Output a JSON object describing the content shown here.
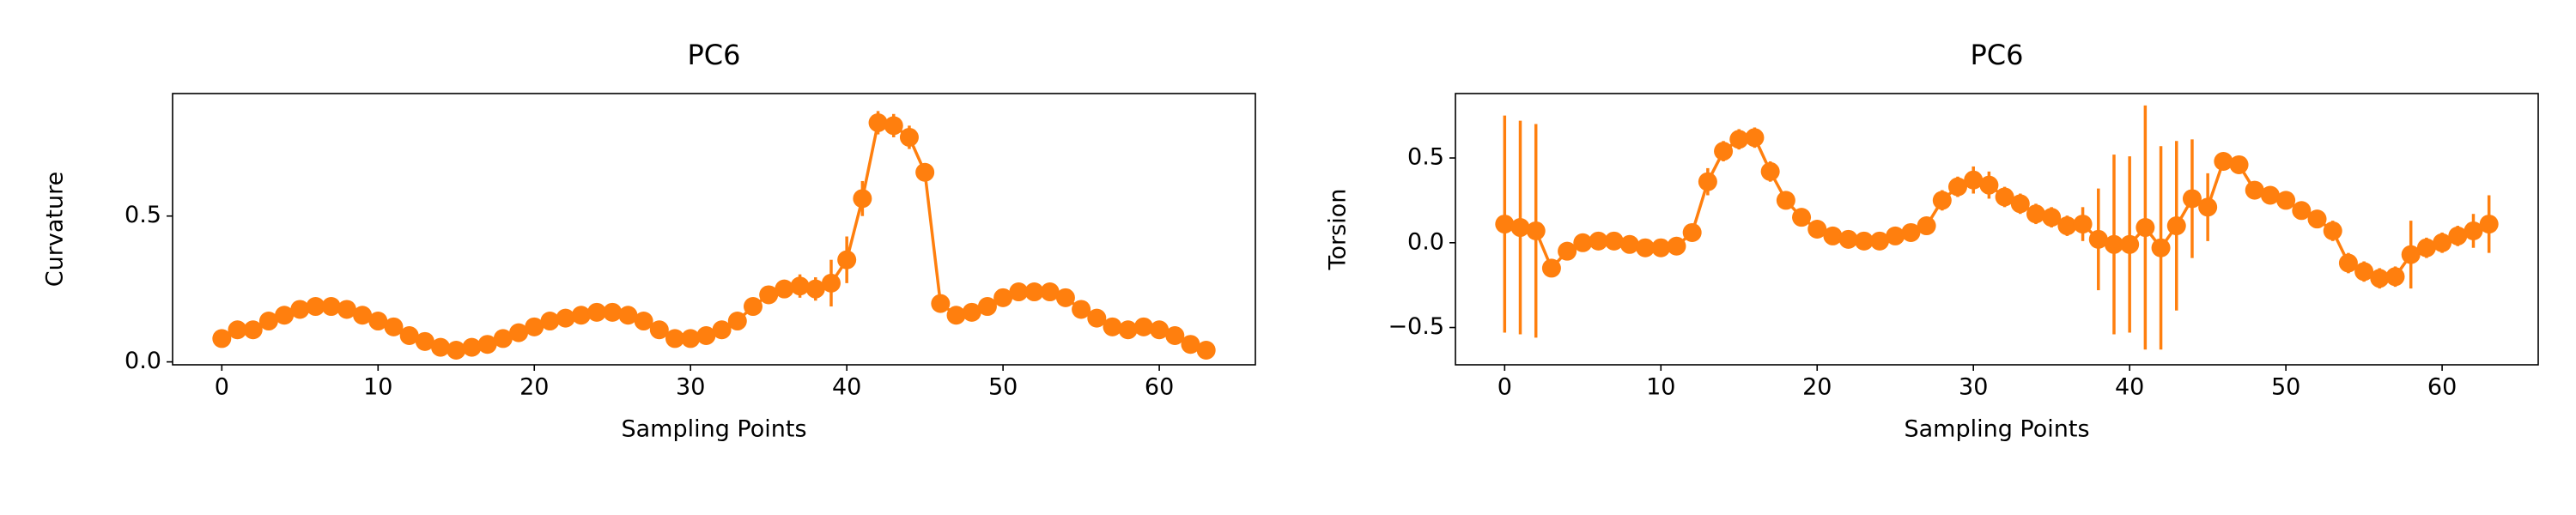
{
  "chart_data": [
    {
      "type": "errorbar",
      "title": "PC6",
      "xlabel": "Sampling Points",
      "ylabel": "Curvature",
      "color": "#ff7f0e",
      "x": [
        0,
        1,
        2,
        3,
        4,
        5,
        6,
        7,
        8,
        9,
        10,
        11,
        12,
        13,
        14,
        15,
        16,
        17,
        18,
        19,
        20,
        21,
        22,
        23,
        24,
        25,
        26,
        27,
        28,
        29,
        30,
        31,
        32,
        33,
        34,
        35,
        36,
        37,
        38,
        39,
        40,
        41,
        42,
        43,
        44,
        45,
        46,
        47,
        48,
        49,
        50,
        51,
        52,
        53,
        54,
        55,
        56,
        57,
        58,
        59,
        60,
        61,
        62,
        63
      ],
      "values": [
        0.08,
        0.11,
        0.11,
        0.14,
        0.16,
        0.18,
        0.19,
        0.19,
        0.18,
        0.16,
        0.14,
        0.12,
        0.09,
        0.07,
        0.05,
        0.04,
        0.05,
        0.06,
        0.08,
        0.1,
        0.12,
        0.14,
        0.15,
        0.16,
        0.17,
        0.17,
        0.16,
        0.14,
        0.11,
        0.08,
        0.08,
        0.09,
        0.11,
        0.14,
        0.19,
        0.23,
        0.25,
        0.26,
        0.25,
        0.27,
        0.35,
        0.56,
        0.82,
        0.81,
        0.77,
        0.65,
        0.2,
        0.16,
        0.17,
        0.19,
        0.22,
        0.24,
        0.24,
        0.24,
        0.22,
        0.18,
        0.15,
        0.12,
        0.11,
        0.12,
        0.11,
        0.09,
        0.06,
        0.04
      ],
      "errors": [
        0.02,
        0.02,
        0.02,
        0.02,
        0.02,
        0.02,
        0.02,
        0.02,
        0.02,
        0.02,
        0.02,
        0.02,
        0.02,
        0.02,
        0.02,
        0.02,
        0.02,
        0.02,
        0.02,
        0.02,
        0.02,
        0.02,
        0.02,
        0.02,
        0.02,
        0.02,
        0.02,
        0.02,
        0.02,
        0.02,
        0.02,
        0.02,
        0.02,
        0.02,
        0.02,
        0.03,
        0.03,
        0.04,
        0.04,
        0.08,
        0.08,
        0.06,
        0.04,
        0.04,
        0.04,
        0.03,
        0.02,
        0.02,
        0.02,
        0.02,
        0.02,
        0.02,
        0.02,
        0.02,
        0.02,
        0.02,
        0.02,
        0.02,
        0.02,
        0.02,
        0.02,
        0.02,
        0.02,
        0.02
      ],
      "xlim": [
        -3.15,
        66.15
      ],
      "ylim": [
        -0.01,
        0.92
      ],
      "xticks": [
        0,
        10,
        20,
        30,
        40,
        50,
        60
      ],
      "yticks": [
        {
          "value": 0,
          "label": "0.0"
        },
        0.5
      ]
    },
    {
      "type": "errorbar",
      "title": "PC6",
      "xlabel": "Sampling Points",
      "ylabel": "Torsion",
      "color": "#ff7f0e",
      "x": [
        0,
        1,
        2,
        3,
        4,
        5,
        6,
        7,
        8,
        9,
        10,
        11,
        12,
        13,
        14,
        15,
        16,
        17,
        18,
        19,
        20,
        21,
        22,
        23,
        24,
        25,
        26,
        27,
        28,
        29,
        30,
        31,
        32,
        33,
        34,
        35,
        36,
        37,
        38,
        39,
        40,
        41,
        42,
        43,
        44,
        45,
        46,
        47,
        48,
        49,
        50,
        51,
        52,
        53,
        54,
        55,
        56,
        57,
        58,
        59,
        60,
        61,
        62,
        63
      ],
      "values": [
        0.11,
        0.09,
        0.07,
        -0.15,
        -0.05,
        0.0,
        0.01,
        0.01,
        -0.01,
        -0.03,
        -0.03,
        -0.02,
        0.06,
        0.36,
        0.54,
        0.61,
        0.62,
        0.42,
        0.25,
        0.15,
        0.08,
        0.04,
        0.02,
        0.01,
        0.01,
        0.04,
        0.06,
        0.1,
        0.25,
        0.33,
        0.37,
        0.34,
        0.27,
        0.23,
        0.17,
        0.15,
        0.1,
        0.11,
        0.02,
        -0.01,
        -0.01,
        0.09,
        -0.03,
        0.1,
        0.26,
        0.21,
        0.48,
        0.46,
        0.31,
        0.28,
        0.25,
        0.19,
        0.14,
        0.07,
        -0.12,
        -0.17,
        -0.21,
        -0.2,
        -0.07,
        -0.03,
        0.0,
        0.04,
        0.07,
        0.11
      ],
      "errors": [
        0.64,
        0.63,
        0.63,
        0.05,
        0.04,
        0.04,
        0.04,
        0.04,
        0.04,
        0.04,
        0.04,
        0.04,
        0.05,
        0.08,
        0.06,
        0.06,
        0.06,
        0.06,
        0.05,
        0.04,
        0.04,
        0.04,
        0.04,
        0.04,
        0.04,
        0.04,
        0.04,
        0.05,
        0.06,
        0.06,
        0.08,
        0.08,
        0.06,
        0.06,
        0.06,
        0.06,
        0.06,
        0.1,
        0.3,
        0.53,
        0.52,
        0.72,
        0.6,
        0.5,
        0.35,
        0.2,
        0.05,
        0.04,
        0.05,
        0.05,
        0.05,
        0.05,
        0.05,
        0.06,
        0.06,
        0.06,
        0.06,
        0.06,
        0.2,
        0.06,
        0.06,
        0.06,
        0.1,
        0.17
      ],
      "xlim": [
        -3.15,
        66.15
      ],
      "ylim": [
        -0.72,
        0.88
      ],
      "xticks": [
        0,
        10,
        20,
        30,
        40,
        50,
        60
      ],
      "yticks": [
        {
          "value": -0.5,
          "label": "−0.5"
        },
        {
          "value": 0,
          "label": "0.0"
        },
        0.5
      ]
    }
  ]
}
